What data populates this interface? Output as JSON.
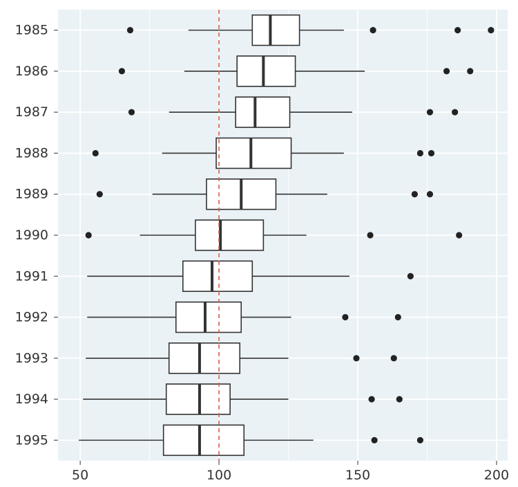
{
  "chart_data": {
    "type": "boxplot",
    "orientation": "horizontal",
    "title": "",
    "xlabel": "",
    "ylabel": "",
    "xlim": [
      42,
      204
    ],
    "x_ticks": [
      50,
      100,
      150,
      200
    ],
    "x_tick_labels": [
      "50",
      "100",
      "150",
      "200"
    ],
    "categories": [
      "1985",
      "1986",
      "1987",
      "1988",
      "1989",
      "1990",
      "1991",
      "1992",
      "1993",
      "1994",
      "1995"
    ],
    "reference_line": {
      "x": 100,
      "color": "#e0574f",
      "style": "dashed"
    },
    "background_color": "#eaf2f6",
    "grid": true,
    "boxes": [
      {
        "label": "1985",
        "whisker_low": 89,
        "q1": 112,
        "median": 118.5,
        "q3": 129,
        "whisker_high": 145,
        "outliers": [
          68,
          155.5,
          186,
          198
        ]
      },
      {
        "label": "1986",
        "whisker_low": 87.5,
        "q1": 106.5,
        "median": 116,
        "q3": 127.5,
        "whisker_high": 152.5,
        "outliers": [
          65,
          182,
          190.5
        ]
      },
      {
        "label": "1987",
        "whisker_low": 82,
        "q1": 106,
        "median": 113,
        "q3": 125.5,
        "whisker_high": 148,
        "outliers": [
          68.5,
          176,
          185
        ]
      },
      {
        "label": "1988",
        "whisker_low": 79.5,
        "q1": 99,
        "median": 111.5,
        "q3": 126,
        "whisker_high": 145,
        "outliers": [
          55.5,
          172.5,
          176.5
        ]
      },
      {
        "label": "1989",
        "whisker_low": 76,
        "q1": 95.5,
        "median": 108,
        "q3": 120.5,
        "whisker_high": 139,
        "outliers": [
          57,
          170.5,
          176
        ]
      },
      {
        "label": "1990",
        "whisker_low": 71.5,
        "q1": 91.5,
        "median": 100.5,
        "q3": 116,
        "whisker_high": 131.5,
        "outliers": [
          53,
          154.5,
          186.5
        ]
      },
      {
        "label": "1991",
        "whisker_low": 52.5,
        "q1": 87,
        "median": 97.5,
        "q3": 112,
        "whisker_high": 147,
        "outliers": [
          169
        ]
      },
      {
        "label": "1992",
        "whisker_low": 52.5,
        "q1": 84.5,
        "median": 95,
        "q3": 108,
        "whisker_high": 126,
        "outliers": [
          145.5,
          164.5
        ]
      },
      {
        "label": "1993",
        "whisker_low": 52,
        "q1": 82,
        "median": 93,
        "q3": 107.5,
        "whisker_high": 125,
        "outliers": [
          149.5,
          163
        ]
      },
      {
        "label": "1994",
        "whisker_low": 51,
        "q1": 81,
        "median": 93,
        "q3": 104,
        "whisker_high": 125,
        "outliers": [
          155,
          165
        ]
      },
      {
        "label": "1995",
        "whisker_low": 49.5,
        "q1": 80,
        "median": 93,
        "q3": 109,
        "whisker_high": 134,
        "outliers": [
          156,
          172.5
        ]
      }
    ]
  }
}
